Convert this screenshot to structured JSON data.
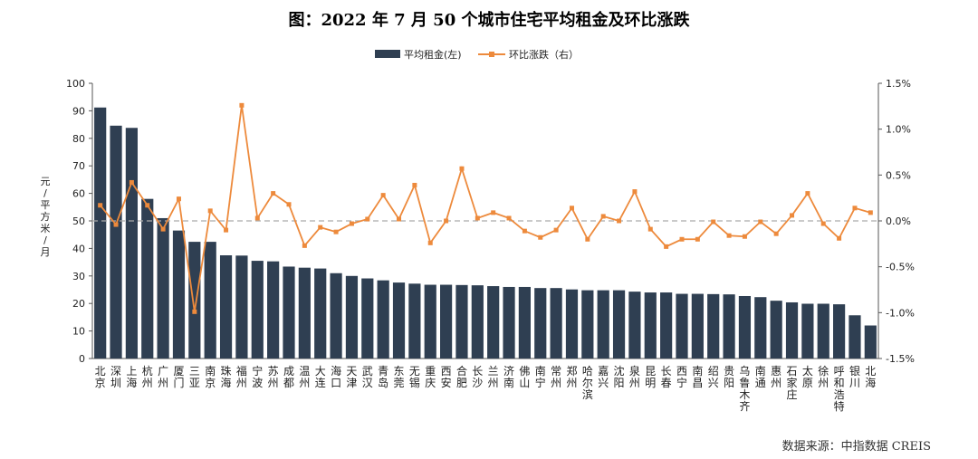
{
  "chart_data": {
    "type": "bar",
    "title": "图：2022 年 7 月 50 个城市住宅平均租金及环比涨跌",
    "ylabel": "元/平方米/月",
    "source": "数据来源：中指数据 CREIS",
    "ylim_left": [
      0,
      100
    ],
    "ylim_right": [
      -1.5,
      1.5
    ],
    "left_ticks": [
      "0",
      "10",
      "20",
      "30",
      "40",
      "50",
      "60",
      "70",
      "80",
      "90",
      "100"
    ],
    "right_ticks": [
      "-1.5%",
      "-1.0%",
      "-0.5%",
      "0.0%",
      "0.5%",
      "1.0%",
      "1.5%"
    ],
    "legend_position": "top-center",
    "colors": {
      "bar": "#2f3f52",
      "line": "#ed8a3c",
      "zero_line": "#aaaaaa"
    },
    "categories": [
      "北京",
      "深圳",
      "上海",
      "杭州",
      "广州",
      "厦门",
      "三亚",
      "南京",
      "珠海",
      "福州",
      "宁波",
      "苏州",
      "成都",
      "温州",
      "大连",
      "海口",
      "天津",
      "武汉",
      "青岛",
      "东莞",
      "无锡",
      "重庆",
      "西安",
      "合肥",
      "长沙",
      "兰州",
      "济南",
      "佛山",
      "南宁",
      "常州",
      "郑州",
      "哈尔滨",
      "嘉兴",
      "沈阳",
      "泉州",
      "昆明",
      "长春",
      "西宁",
      "南昌",
      "绍兴",
      "贵阳",
      "乌鲁木齐",
      "南通",
      "惠州",
      "石家庄",
      "太原",
      "徐州",
      "呼和浩特",
      "银川",
      "北海"
    ],
    "series": [
      {
        "name": "平均租金(左)",
        "type": "bar",
        "axis": "left",
        "values": [
          91.2,
          84.6,
          83.8,
          58.0,
          51.0,
          46.5,
          42.4,
          42.4,
          37.5,
          37.4,
          35.5,
          35.3,
          33.4,
          33.0,
          32.7,
          31.0,
          30.0,
          29.1,
          28.4,
          27.6,
          27.2,
          26.8,
          26.8,
          26.7,
          26.6,
          26.3,
          26.0,
          26.0,
          25.6,
          25.6,
          25.1,
          24.8,
          24.8,
          24.8,
          24.3,
          24.0,
          24.0,
          23.5,
          23.5,
          23.4,
          23.3,
          22.7,
          22.3,
          21.0,
          20.4,
          19.9,
          19.9,
          19.7,
          15.7,
          12.0
        ]
      },
      {
        "name": "环比涨跌（右）",
        "type": "line",
        "axis": "right",
        "values": [
          0.17,
          -0.04,
          0.42,
          0.17,
          -0.09,
          0.24,
          -0.99,
          0.11,
          -0.1,
          1.26,
          0.03,
          0.3,
          0.18,
          -0.27,
          -0.07,
          -0.12,
          -0.03,
          0.02,
          0.28,
          0.02,
          0.39,
          -0.24,
          0.0,
          0.57,
          0.03,
          0.09,
          0.03,
          -0.11,
          -0.18,
          -0.1,
          0.14,
          -0.2,
          0.05,
          0.0,
          0.32,
          -0.09,
          -0.28,
          -0.2,
          -0.2,
          -0.01,
          -0.16,
          -0.17,
          -0.01,
          -0.14,
          0.06,
          0.3,
          -0.03,
          -0.19,
          0.14,
          0.09
        ]
      }
    ]
  }
}
